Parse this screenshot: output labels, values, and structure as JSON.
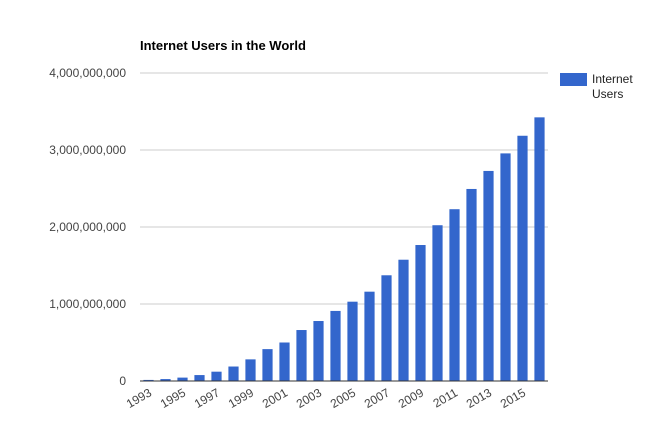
{
  "chart_data": {
    "type": "bar",
    "title": "Internet Users in the World",
    "xlabel": "",
    "ylabel": "",
    "ylim": [
      0,
      4000000000
    ],
    "y_ticks": [
      0,
      1000000000,
      2000000000,
      3000000000,
      4000000000
    ],
    "y_tick_labels": [
      "0",
      "1,000,000,000",
      "2,000,000,000",
      "3,000,000,000",
      "4,000,000,000"
    ],
    "categories": [
      "1993",
      "1994",
      "1995",
      "1996",
      "1997",
      "1998",
      "1999",
      "2000",
      "2001",
      "2002",
      "2003",
      "2004",
      "2005",
      "2006",
      "2007",
      "2008",
      "2009",
      "2010",
      "2011",
      "2012",
      "2013",
      "2014",
      "2015",
      "2016"
    ],
    "x_tick_labels": [
      "1993",
      "1995",
      "1997",
      "1999",
      "2001",
      "2003",
      "2005",
      "2007",
      "2009",
      "2011",
      "2013",
      "2015"
    ],
    "series": [
      {
        "name": "Internet Users",
        "color": "#3366cc",
        "values": [
          14000000,
          25000000,
          44000000,
          77000000,
          121000000,
          188000000,
          281000000,
          414000000,
          500000000,
          662000000,
          779000000,
          910000000,
          1030000000,
          1160000000,
          1373000000,
          1575000000,
          1766000000,
          2023000000,
          2231000000,
          2494000000,
          2728000000,
          2956000000,
          3185000000,
          3424000000
        ]
      }
    ],
    "grid": true,
    "legend_position": "right"
  }
}
